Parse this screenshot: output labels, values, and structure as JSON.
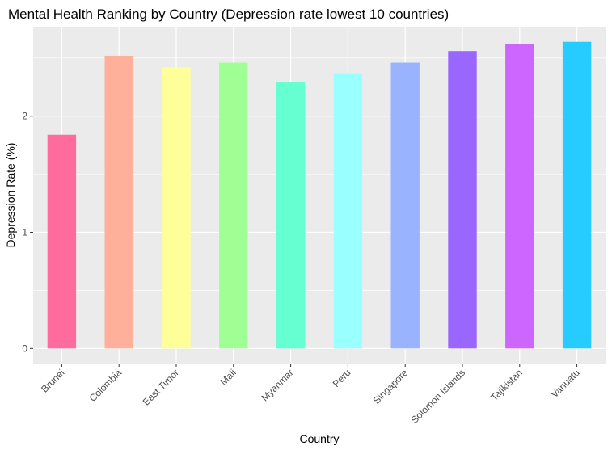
{
  "chart_data": {
    "type": "bar",
    "title": "Mental Health Ranking by Country (Depression rate lowest 10 countries)",
    "xlabel": "Country",
    "ylabel": "Depression Rate (%)",
    "categories": [
      "Brunei",
      "Colombia",
      "East Timor",
      "Mali",
      "Myanmar",
      "Peru",
      "Singapore",
      "Solomon Islands",
      "Tajikistan",
      "Vanuatu"
    ],
    "values": [
      1.84,
      2.52,
      2.42,
      2.46,
      2.29,
      2.37,
      2.46,
      2.56,
      2.62,
      2.64
    ],
    "colors": [
      "#FF6B9C",
      "#FFB09A",
      "#FFFF99",
      "#A0FF94",
      "#66FFD1",
      "#99FFFF",
      "#99B3FF",
      "#9966FF",
      "#CC66FF",
      "#26CCFF"
    ],
    "yticks": [
      0,
      1,
      2
    ],
    "ylim": [
      -0.13,
      2.77
    ],
    "grid": true,
    "panel_background": "#EBEBEB",
    "legend": "none"
  }
}
